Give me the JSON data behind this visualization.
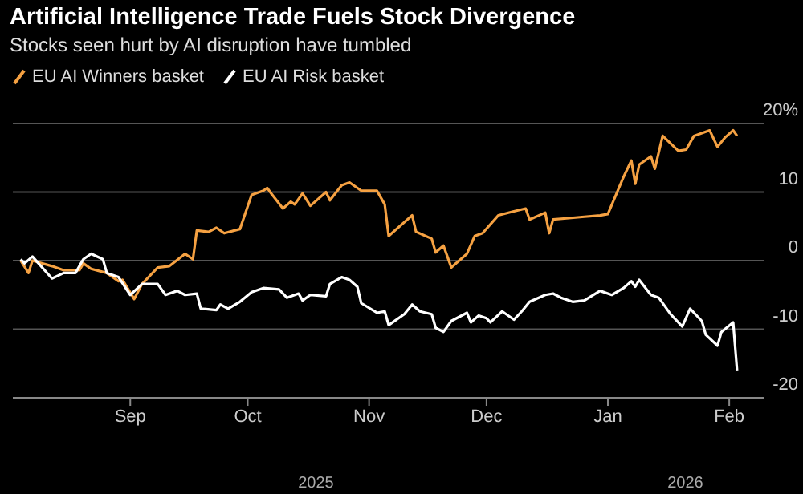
{
  "chart_data": {
    "type": "line",
    "title": "Artificial Intelligence Trade Fuels Stock Divergence",
    "subtitle": "Stocks seen hurt by AI disruption have tumbled",
    "annotations": [
      "2025",
      "2026"
    ],
    "xlim": [
      "2025-08-02",
      "2026-02-10"
    ],
    "xticks": [
      {
        "value": "2025-09-01",
        "label": "Sep"
      },
      {
        "value": "2025-10-01",
        "label": "Oct"
      },
      {
        "value": "2025-11-01",
        "label": "Nov"
      },
      {
        "value": "2025-12-01",
        "label": "Dec"
      },
      {
        "value": "2026-01-01",
        "label": "Jan"
      },
      {
        "value": "2026-02-01",
        "label": "Feb"
      }
    ],
    "ylim": [
      -20,
      20
    ],
    "yticks": [
      {
        "value": 20,
        "label": "20%"
      },
      10,
      0,
      -10,
      -20
    ],
    "grid": "y",
    "legend": "top left",
    "marker": "none",
    "line_style": "solid",
    "series": [
      {
        "name": "EU AI Winners basket",
        "color": "#f5a142",
        "x": [
          "2025-08-04",
          "2025-08-06",
          "2025-08-07",
          "2025-08-12",
          "2025-08-15",
          "2025-08-19",
          "2025-08-20",
          "2025-08-22",
          "2025-08-26",
          "2025-08-29",
          "2025-08-30",
          "2025-09-02",
          "2025-09-04",
          "2025-09-08",
          "2025-09-11",
          "2025-09-15",
          "2025-09-17",
          "2025-09-18",
          "2025-09-21",
          "2025-09-23",
          "2025-09-25",
          "2025-09-29",
          "2025-10-02",
          "2025-10-05",
          "2025-10-06",
          "2025-10-07",
          "2025-10-10",
          "2025-10-12",
          "2025-10-13",
          "2025-10-15",
          "2025-10-17",
          "2025-10-21",
          "2025-10-22",
          "2025-10-25",
          "2025-10-27",
          "2025-10-30",
          "2025-11-03",
          "2025-11-05",
          "2025-11-06",
          "2025-11-12",
          "2025-11-13",
          "2025-11-17",
          "2025-11-18",
          "2025-11-20",
          "2025-11-21",
          "2025-11-22",
          "2025-11-26",
          "2025-11-28",
          "2025-11-30",
          "2025-12-04",
          "2025-12-08",
          "2025-12-11",
          "2025-12-12",
          "2025-12-16",
          "2025-12-17",
          "2025-12-18",
          "2025-12-22",
          "2025-12-26",
          "2025-12-30",
          "2026-01-01",
          "2026-01-05",
          "2026-01-07",
          "2026-01-08",
          "2026-01-09",
          "2026-01-12",
          "2026-01-13",
          "2026-01-15",
          "2026-01-19",
          "2026-01-21",
          "2026-01-23",
          "2026-01-27",
          "2026-01-29",
          "2026-01-31",
          "2026-02-02",
          "2026-02-03"
        ],
        "values": [
          0,
          -1.8,
          0,
          -0.8,
          -1.4,
          -1.4,
          -0.4,
          -1.2,
          -1.8,
          -3,
          -2.8,
          -5.6,
          -3.4,
          -1,
          -0.8,
          1,
          0.2,
          4.4,
          4.2,
          4.8,
          4,
          4.6,
          9.6,
          10.2,
          10.6,
          9.8,
          7.6,
          8.6,
          8.2,
          9.8,
          8,
          10,
          8.8,
          11,
          11.4,
          10.2,
          10.2,
          8.2,
          3.6,
          6.6,
          4.2,
          3.2,
          1.2,
          2.2,
          0.6,
          -1,
          1,
          3.6,
          4,
          6.6,
          7.2,
          7.6,
          6,
          7,
          4,
          6,
          6.2,
          6.4,
          6.6,
          6.8,
          12.2,
          14.6,
          11.2,
          14,
          15.2,
          13.4,
          18.2,
          16,
          16.2,
          18.2,
          19,
          16.6,
          18,
          19,
          18.2
        ]
      },
      {
        "name": "EU AI Risk basket",
        "color": "#ffffff",
        "x": [
          "2025-08-04",
          "2025-08-05",
          "2025-08-07",
          "2025-08-12",
          "2025-08-15",
          "2025-08-18",
          "2025-08-20",
          "2025-08-22",
          "2025-08-25",
          "2025-08-26",
          "2025-08-29",
          "2025-09-01",
          "2025-09-04",
          "2025-09-08",
          "2025-09-10",
          "2025-09-13",
          "2025-09-15",
          "2025-09-18",
          "2025-09-19",
          "2025-09-23",
          "2025-09-24",
          "2025-09-26",
          "2025-09-29",
          "2025-10-02",
          "2025-10-05",
          "2025-10-09",
          "2025-10-11",
          "2025-10-14",
          "2025-10-15",
          "2025-10-17",
          "2025-10-21",
          "2025-10-22",
          "2025-10-25",
          "2025-10-27",
          "2025-10-29",
          "2025-10-30",
          "2025-11-03",
          "2025-11-05",
          "2025-11-06",
          "2025-11-10",
          "2025-11-12",
          "2025-11-14",
          "2025-11-17",
          "2025-11-18",
          "2025-11-20",
          "2025-11-22",
          "2025-11-26",
          "2025-11-27",
          "2025-11-29",
          "2025-12-01",
          "2025-12-02",
          "2025-12-05",
          "2025-12-08",
          "2025-12-10",
          "2025-12-12",
          "2025-12-16",
          "2025-12-18",
          "2025-12-20",
          "2025-12-23",
          "2025-12-26",
          "2025-12-30",
          "2026-01-02",
          "2026-01-05",
          "2026-01-07",
          "2026-01-08",
          "2026-01-09",
          "2026-01-12",
          "2026-01-14",
          "2026-01-17",
          "2026-01-20",
          "2026-01-22",
          "2026-01-25",
          "2026-01-26",
          "2026-01-29",
          "2026-01-30",
          "2026-02-02",
          "2026-02-03"
        ],
        "values": [
          0.2,
          -0.4,
          0.6,
          -2.6,
          -1.8,
          -1.8,
          0.2,
          1,
          0.2,
          -1.8,
          -2.4,
          -5,
          -3.4,
          -3.4,
          -5,
          -4.4,
          -5,
          -4.8,
          -7,
          -7.2,
          -6.4,
          -7,
          -6,
          -4.6,
          -4,
          -4.2,
          -5.4,
          -4.8,
          -5.8,
          -5,
          -5.2,
          -3.4,
          -2.4,
          -2.8,
          -3.8,
          -6.2,
          -7.6,
          -7.4,
          -9.4,
          -7.8,
          -6.4,
          -7.4,
          -7.8,
          -9.8,
          -10.4,
          -8.8,
          -7.6,
          -9,
          -8,
          -8.4,
          -9,
          -7.4,
          -8.6,
          -7.4,
          -6,
          -5,
          -4.8,
          -5.4,
          -6,
          -5.8,
          -4.4,
          -5,
          -4,
          -3,
          -3.8,
          -2.8,
          -5,
          -5.4,
          -7.8,
          -9.6,
          -7,
          -8.8,
          -10.8,
          -12.4,
          -10.4,
          -9,
          -16
        ]
      }
    ]
  }
}
